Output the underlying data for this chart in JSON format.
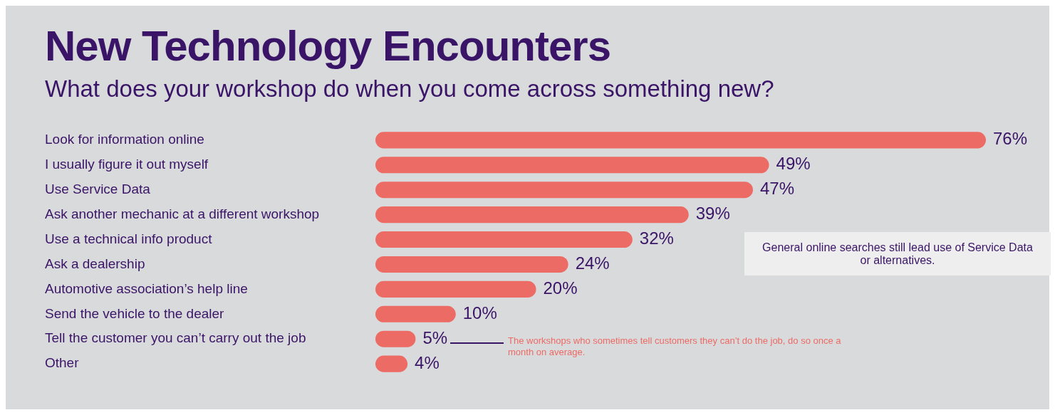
{
  "chart_data": {
    "type": "bar",
    "orientation": "horizontal",
    "title": "New Technology Encounters",
    "subtitle": "What does your workshop do when you come across something new?",
    "categories": [
      "Look for information online",
      "I usually figure it out myself",
      "Use Service Data",
      "Ask another mechanic at a different workshop",
      "Use a technical info product",
      "Ask a dealership",
      "Automotive association’s help line",
      "Send the vehicle to the dealer",
      "Tell the customer you can’t carry out the job",
      "Other"
    ],
    "values": [
      76,
      49,
      47,
      39,
      32,
      24,
      20,
      10,
      5,
      4
    ],
    "value_labels": [
      "76%",
      "49%",
      "47%",
      "39%",
      "32%",
      "24%",
      "20%",
      "10%",
      "5%",
      "4%"
    ],
    "color": "#ec6b65",
    "grid": false,
    "legend": false,
    "annotations": [
      "General online searches still lead use of Service Data or alternatives.",
      "The workshops who sometimes tell customers they can’t do the job, do so once a month on average."
    ]
  }
}
